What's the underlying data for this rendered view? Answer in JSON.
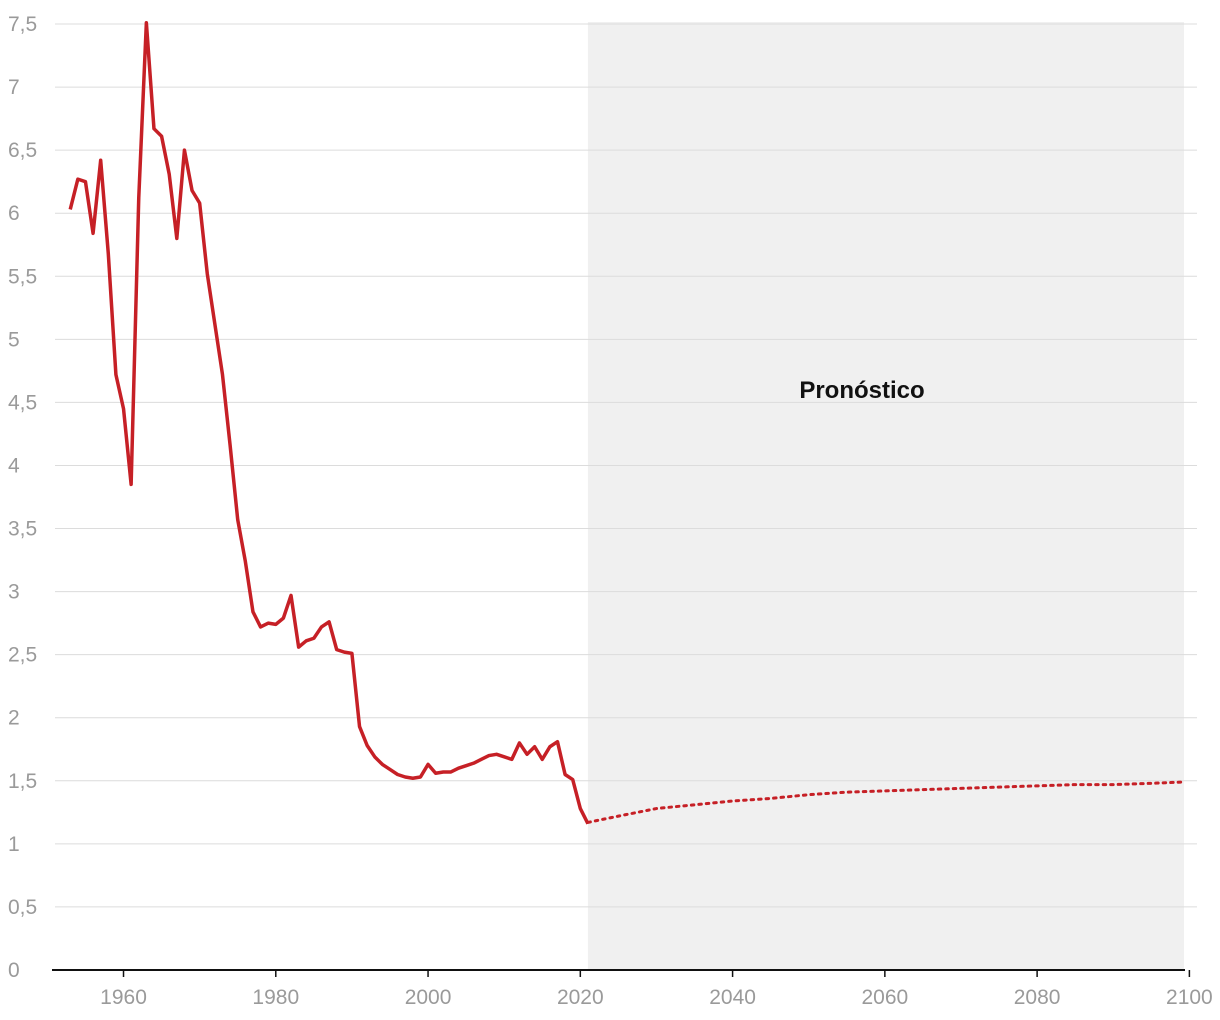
{
  "chart_data": {
    "type": "line",
    "title": "",
    "xlabel": "",
    "ylabel": "",
    "xlim": [
      1951,
      2101
    ],
    "ylim": [
      0,
      7.5
    ],
    "grid": true,
    "legend": "none",
    "x_ticks": [
      {
        "value": 1960,
        "label": "1960"
      },
      {
        "value": 1980,
        "label": "1980"
      },
      {
        "value": 2000,
        "label": "2000"
      },
      {
        "value": 2020,
        "label": "2020"
      },
      {
        "value": 2040,
        "label": "2040"
      },
      {
        "value": 2060,
        "label": "2060"
      },
      {
        "value": 2080,
        "label": "2080"
      },
      {
        "value": 2100,
        "label": "2100"
      }
    ],
    "y_ticks": [
      {
        "value": 0,
        "label": "0"
      },
      {
        "value": 0.5,
        "label": "0,5"
      },
      {
        "value": 1,
        "label": "1"
      },
      {
        "value": 1.5,
        "label": "1,5"
      },
      {
        "value": 2,
        "label": "2"
      },
      {
        "value": 2.5,
        "label": "2,5"
      },
      {
        "value": 3,
        "label": "3"
      },
      {
        "value": 3.5,
        "label": "3,5"
      },
      {
        "value": 4,
        "label": "4"
      },
      {
        "value": 4.5,
        "label": "4,5"
      },
      {
        "value": 5,
        "label": "5"
      },
      {
        "value": 5.5,
        "label": "5,5"
      },
      {
        "value": 6,
        "label": "6"
      },
      {
        "value": 6.5,
        "label": "6,5"
      },
      {
        "value": 7,
        "label": "7"
      },
      {
        "value": 7.5,
        "label": "7,5"
      }
    ],
    "forecast_region": {
      "label": "Pronóstico",
      "x_start": 2021,
      "x_end": 2100,
      "label_x": 2057,
      "label_y": 4.6,
      "color": "#f0f0f0"
    },
    "series": [
      {
        "name": "historical",
        "style": "solid",
        "color": "#c62026",
        "points": [
          [
            1953,
            6.03
          ],
          [
            1954,
            6.27
          ],
          [
            1955,
            6.25
          ],
          [
            1956,
            5.84
          ],
          [
            1957,
            6.42
          ],
          [
            1958,
            5.68
          ],
          [
            1959,
            4.72
          ],
          [
            1960,
            4.45
          ],
          [
            1961,
            3.85
          ],
          [
            1962,
            6.12
          ],
          [
            1963,
            7.51
          ],
          [
            1964,
            6.67
          ],
          [
            1965,
            6.61
          ],
          [
            1966,
            6.31
          ],
          [
            1967,
            5.8
          ],
          [
            1968,
            6.5
          ],
          [
            1969,
            6.18
          ],
          [
            1970,
            6.08
          ],
          [
            1971,
            5.52
          ],
          [
            1972,
            5.12
          ],
          [
            1973,
            4.72
          ],
          [
            1974,
            4.16
          ],
          [
            1975,
            3.57
          ],
          [
            1976,
            3.24
          ],
          [
            1977,
            2.84
          ],
          [
            1978,
            2.72
          ],
          [
            1979,
            2.75
          ],
          [
            1980,
            2.74
          ],
          [
            1981,
            2.79
          ],
          [
            1982,
            2.97
          ],
          [
            1983,
            2.56
          ],
          [
            1984,
            2.61
          ],
          [
            1985,
            2.63
          ],
          [
            1986,
            2.72
          ],
          [
            1987,
            2.76
          ],
          [
            1988,
            2.54
          ],
          [
            1989,
            2.52
          ],
          [
            1990,
            2.51
          ],
          [
            1991,
            1.93
          ],
          [
            1992,
            1.78
          ],
          [
            1993,
            1.69
          ],
          [
            1994,
            1.63
          ],
          [
            1995,
            1.59
          ],
          [
            1996,
            1.55
          ],
          [
            1997,
            1.53
          ],
          [
            1998,
            1.52
          ],
          [
            1999,
            1.53
          ],
          [
            2000,
            1.63
          ],
          [
            2001,
            1.56
          ],
          [
            2002,
            1.57
          ],
          [
            2003,
            1.57
          ],
          [
            2004,
            1.6
          ],
          [
            2005,
            1.62
          ],
          [
            2006,
            1.64
          ],
          [
            2007,
            1.67
          ],
          [
            2008,
            1.7
          ],
          [
            2009,
            1.71
          ],
          [
            2010,
            1.69
          ],
          [
            2011,
            1.67
          ],
          [
            2012,
            1.8
          ],
          [
            2013,
            1.71
          ],
          [
            2014,
            1.77
          ],
          [
            2015,
            1.67
          ],
          [
            2016,
            1.77
          ],
          [
            2017,
            1.81
          ],
          [
            2018,
            1.55
          ],
          [
            2019,
            1.51
          ],
          [
            2020,
            1.28
          ],
          [
            2021,
            1.16
          ]
        ]
      },
      {
        "name": "forecast",
        "style": "dotted",
        "color": "#c62026",
        "points": [
          [
            2021,
            1.17
          ],
          [
            2025,
            1.22
          ],
          [
            2030,
            1.28
          ],
          [
            2035,
            1.31
          ],
          [
            2040,
            1.34
          ],
          [
            2045,
            1.36
          ],
          [
            2050,
            1.39
          ],
          [
            2055,
            1.41
          ],
          [
            2060,
            1.42
          ],
          [
            2065,
            1.43
          ],
          [
            2070,
            1.44
          ],
          [
            2075,
            1.45
          ],
          [
            2080,
            1.46
          ],
          [
            2085,
            1.47
          ],
          [
            2090,
            1.47
          ],
          [
            2095,
            1.48
          ],
          [
            2099,
            1.49
          ]
        ]
      }
    ]
  }
}
